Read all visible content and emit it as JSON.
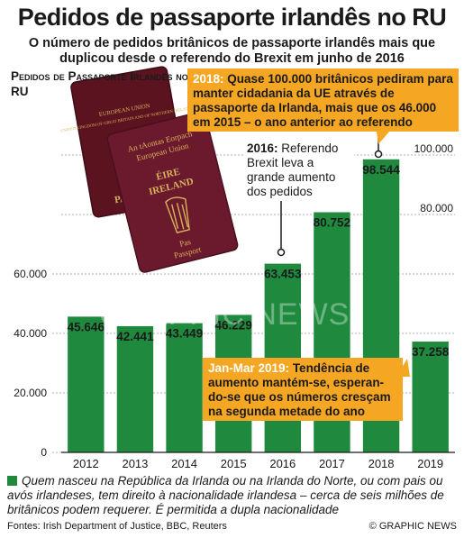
{
  "title": "Pedidos de passaporte irlandês no RU",
  "subtitle": "O número de pedidos britânicos de passaporte irlandês mais que duplicou desde o referendo do Brexit em junho de 2016",
  "chart_label": "Pedidos de Passaporte Irlandês no RU",
  "colors": {
    "bar": "#1f8a3e",
    "accent": "#f5a623",
    "grid": "#999999"
  },
  "chart_data": {
    "type": "bar",
    "categories": [
      "2012",
      "2013",
      "2014",
      "2015",
      "2016",
      "2017",
      "2018",
      "2019"
    ],
    "values": [
      45646,
      42441,
      43449,
      46229,
      63453,
      80752,
      98544,
      37258
    ],
    "value_labels": [
      "45.646",
      "42.441",
      "43.449",
      "46.229",
      "63.453",
      "80.752",
      "98.544",
      "37.258"
    ],
    "ylim": [
      0,
      100000
    ],
    "y_ticks_left": [
      {
        "value": 0,
        "label": "0"
      },
      {
        "value": 20000,
        "label": "20.000"
      },
      {
        "value": 40000,
        "label": "40.000"
      },
      {
        "value": 60000,
        "label": "60.000"
      }
    ],
    "y_ticks_right": [
      {
        "value": 80000,
        "label": "80.000"
      },
      {
        "value": 100000,
        "label": "100.000"
      }
    ],
    "grid": true
  },
  "annotations": {
    "a2018_year": "2018:",
    "a2018_text": "Quase 100.000 britânicos pediram para manter cidadania da UE através de passaporte da Irlanda, mais que os 46.000 em 2015 – o ano anterior ao referendo",
    "a2016_year": "2016:",
    "a2016_text": "Referendo Brexit leva a grande aumento dos pedidos",
    "a2019_year": "Jan-Mar 2019:",
    "a2019_text": "Tendência de aumento mantém-se, esperan-do-se que os números cresçam na segunda metade do ano"
  },
  "passports": {
    "uk_line1": "EUROPEAN UNION",
    "uk_line2": "UNITED KINGDOM OF GREAT BRITAIN AND OF NORTHERN IRELAND",
    "uk_word": "PASSPORT",
    "ie_line1": "An tAontas Eorpach",
    "ie_line2": "European Union",
    "ie_line3": "ÉIRE",
    "ie_line4": "IRELAND",
    "ie_word1": "Pas",
    "ie_word2": "Passport"
  },
  "watermark": "GRAPHIC NEWS",
  "footnote": "Quem nasceu na República da Irlanda ou na Irlanda do Norte, ou com pais ou avós irlandeses, tem direito à nacionalidade irlandesa – cerca de seis milhões de britânicos podem requerer. É permitida a dupla nacionalidade",
  "sources": "Fontes: Irish Department of Justice, BBC, Reuters",
  "credit": "© GRAPHIC NEWS"
}
